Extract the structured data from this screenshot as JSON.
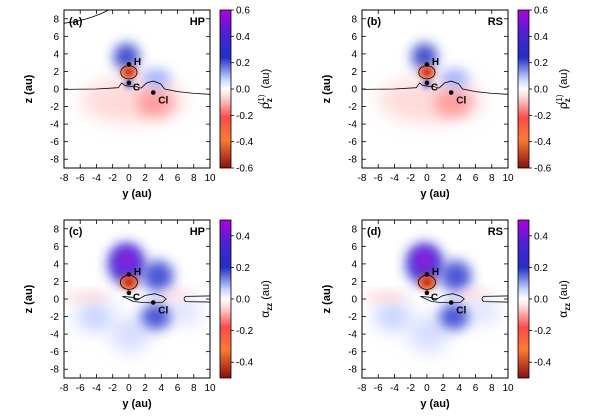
{
  "chart_data": [
    {
      "type": "heatmap",
      "panel_label": "(a)",
      "method": "HP",
      "xlabel": "y (au)",
      "ylabel": "z (au)",
      "xlim": [
        -8,
        10
      ],
      "ylim": [
        -9,
        9
      ],
      "xticks": [
        -8,
        -6,
        -4,
        -2,
        0,
        2,
        4,
        6,
        8,
        10
      ],
      "yticks": [
        -8,
        -6,
        -4,
        -2,
        0,
        2,
        4,
        6,
        8
      ],
      "colorbar_label_main": "ρ",
      "colorbar_label_sub": "z",
      "colorbar_label_sup": "(1)",
      "colorbar_label_unit": "(au)",
      "clim": [
        -0.6,
        0.6
      ],
      "colorbar_ticks": [
        "0.6",
        "0.4",
        "0.2",
        "0.0",
        "-0.2",
        "-0.4",
        "-0.6"
      ],
      "atoms": [
        {
          "label": "H",
          "y": 0,
          "z": 2.8,
          "label_dy": 0.4
        },
        {
          "label": "C",
          "y": 0,
          "z": 0.7,
          "label_dy": -0.4
        },
        {
          "label": "Cl",
          "y": 3,
          "z": -0.4,
          "label_dy": -0.8
        }
      ]
    },
    {
      "type": "heatmap",
      "panel_label": "(b)",
      "method": "RS",
      "xlabel": "y (au)",
      "ylabel": "z (au)",
      "xlim": [
        -8,
        10
      ],
      "ylim": [
        -9,
        9
      ],
      "xticks": [
        -8,
        -6,
        -4,
        -2,
        0,
        2,
        4,
        6,
        8,
        10
      ],
      "yticks": [
        -8,
        -6,
        -4,
        -2,
        0,
        2,
        4,
        6,
        8
      ],
      "colorbar_label_main": "ρ",
      "colorbar_label_sub": "z",
      "colorbar_label_sup": "(1)",
      "colorbar_label_unit": "(au)",
      "clim": [
        -0.6,
        0.6
      ],
      "colorbar_ticks": [
        "0.6",
        "0.4",
        "0.2",
        "0.0",
        "-0.2",
        "-0.4",
        "-0.6"
      ],
      "atoms": [
        {
          "label": "H",
          "y": 0,
          "z": 2.8,
          "label_dy": 0.4
        },
        {
          "label": "C",
          "y": 0,
          "z": 0.7,
          "label_dy": -0.4
        },
        {
          "label": "Cl",
          "y": 3,
          "z": -0.4,
          "label_dy": -0.8
        }
      ]
    },
    {
      "type": "heatmap",
      "panel_label": "(c)",
      "method": "HP",
      "xlabel": "y (au)",
      "ylabel": "z (au)",
      "xlim": [
        -8,
        10
      ],
      "ylim": [
        -9,
        9
      ],
      "xticks": [
        -8,
        -6,
        -4,
        -2,
        0,
        2,
        4,
        6,
        8,
        10
      ],
      "yticks": [
        -8,
        -6,
        -4,
        -2,
        0,
        2,
        4,
        6,
        8
      ],
      "colorbar_label_main": "α",
      "colorbar_label_sub": "zz",
      "colorbar_label_sup": "",
      "colorbar_label_unit": "(au)",
      "clim": [
        -0.5,
        0.5
      ],
      "colorbar_ticks": [
        "0.4",
        "0.2",
        "0.0",
        "-0.2",
        "-0.4"
      ],
      "atoms": [
        {
          "label": "H",
          "y": 0,
          "z": 2.8,
          "label_dy": 0.4
        },
        {
          "label": "C",
          "y": 0,
          "z": 0.7,
          "label_dy": -0.4
        },
        {
          "label": "Cl",
          "y": 3,
          "z": -0.4,
          "label_dy": -0.8
        }
      ]
    },
    {
      "type": "heatmap",
      "panel_label": "(d)",
      "method": "RS",
      "xlabel": "y (au)",
      "ylabel": "z (au)",
      "xlim": [
        -8,
        10
      ],
      "ylim": [
        -9,
        9
      ],
      "xticks": [
        -8,
        -6,
        -4,
        -2,
        0,
        2,
        4,
        6,
        8,
        10
      ],
      "yticks": [
        -8,
        -6,
        -4,
        -2,
        0,
        2,
        4,
        6,
        8
      ],
      "colorbar_label_main": "α",
      "colorbar_label_sub": "zz",
      "colorbar_label_sup": "",
      "colorbar_label_unit": "(au)",
      "clim": [
        -0.5,
        0.5
      ],
      "colorbar_ticks": [
        "0.4",
        "0.2",
        "0.0",
        "-0.2",
        "-0.4"
      ],
      "atoms": [
        {
          "label": "H",
          "y": 0,
          "z": 2.8,
          "label_dy": 0.4
        },
        {
          "label": "C",
          "y": 0,
          "z": 0.7,
          "label_dy": -0.4
        },
        {
          "label": "Cl",
          "y": 3,
          "z": -0.4,
          "label_dy": -0.8
        }
      ]
    }
  ],
  "colors": {
    "positive_high": "#b000e0",
    "positive_mid": "#2030c8",
    "positive_low": "#c8d4ff",
    "zero": "#ffffff",
    "negative_low": "#ffcfcf",
    "negative_mid": "#ff7a30",
    "negative_high": "#9a1818"
  }
}
